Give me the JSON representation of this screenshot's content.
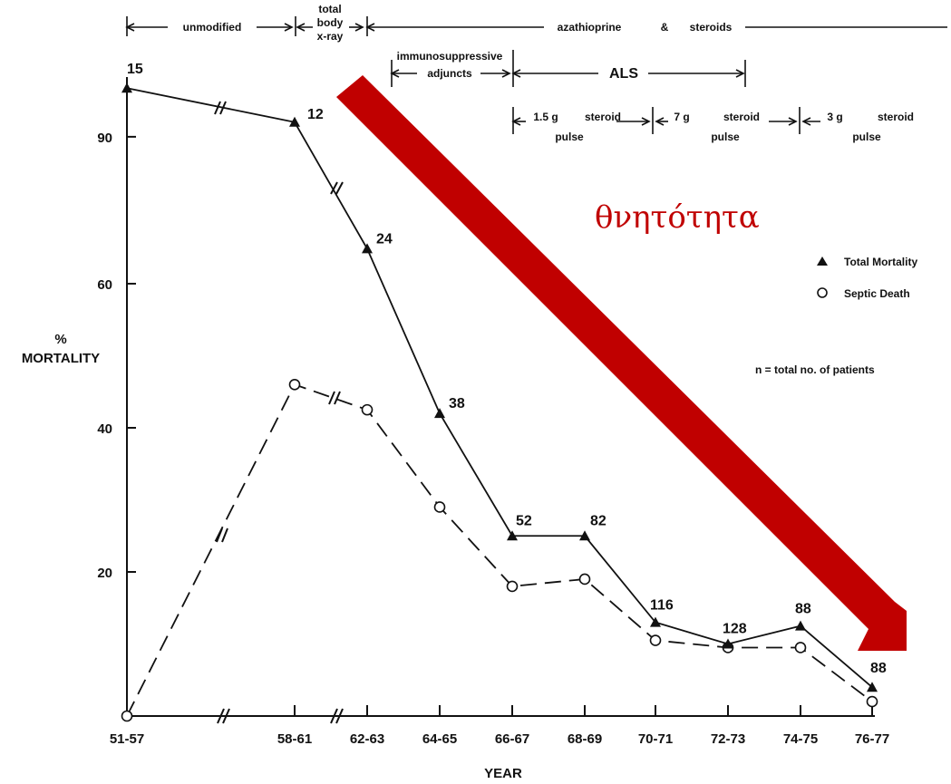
{
  "chart_data": {
    "type": "line",
    "ylabel_lines": [
      "%",
      "MORTALITY"
    ],
    "xlabel": "YEAR",
    "categories": [
      "51-57",
      "58-61",
      "62-63",
      "64-65",
      "66-67",
      "68-69",
      "70-71",
      "72-73",
      "74-75",
      "76-77"
    ],
    "y_ticks": [
      "20",
      "40",
      "60",
      "90"
    ],
    "series": [
      {
        "name": "Total Mortality",
        "marker": "filled-triangle",
        "style": "solid",
        "values": [
          100,
          93,
          67,
          42,
          25,
          25,
          13,
          10,
          12.5,
          4
        ],
        "n_labels": [
          "15",
          "12",
          "24",
          "38",
          "52",
          "82",
          "116",
          "128",
          "88",
          "88"
        ]
      },
      {
        "name": "Septic Death",
        "marker": "open-circle",
        "style": "dashed",
        "values": [
          0,
          46,
          42.5,
          29,
          18,
          19,
          10.5,
          9.5,
          9.5,
          2
        ]
      }
    ],
    "legend": {
      "placement": "right",
      "note": "n = total no. of patients"
    },
    "eras": {
      "row1": [
        "unmodified",
        "total",
        "body",
        "x-ray",
        "azathioprine",
        "&",
        "steroids"
      ],
      "row2": [
        "immunosuppressive",
        "adjuncts",
        "ALS"
      ],
      "row3": [
        "1.5 g",
        "steroid",
        "pulse",
        "7 g",
        "steroid",
        "pulse",
        "3 g",
        "steroid",
        "pulse"
      ]
    },
    "annotation": {
      "text": "θνητότητα",
      "color": "#c00000",
      "arrow": "thick red arrow pointing down-right"
    }
  }
}
